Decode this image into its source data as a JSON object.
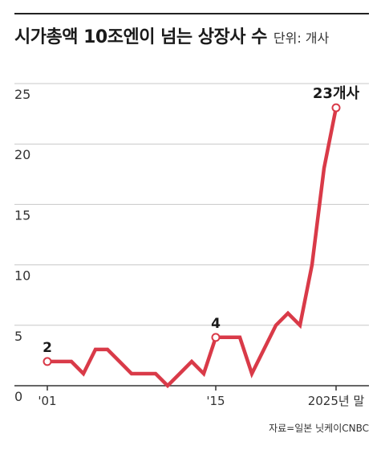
{
  "title": "시가총액 10조엔이 넘는 상장사 수",
  "unit": "단위: 개사",
  "source": "자료=일본 닛케이CNBC",
  "colors": {
    "line": "#d93a48",
    "grid": "#c8c8c8",
    "axis": "#333333",
    "text": "#1a1a1a"
  },
  "chart_data": {
    "type": "line",
    "x": [
      2001,
      2002,
      2003,
      2004,
      2005,
      2006,
      2007,
      2008,
      2009,
      2010,
      2011,
      2012,
      2013,
      2014,
      2015,
      2016,
      2017,
      2018,
      2019,
      2020,
      2021,
      2022,
      2023,
      2024,
      2025
    ],
    "series": [
      {
        "name": "",
        "values": [
          2,
          2,
          2,
          1,
          3,
          3,
          2,
          1,
          1,
          1,
          0,
          1,
          2,
          1,
          4,
          4,
          4,
          1,
          3,
          5,
          6,
          5,
          10,
          18,
          23
        ]
      }
    ],
    "ylim": [
      0,
      25
    ],
    "yticks": [
      0,
      5,
      10,
      15,
      20,
      25
    ],
    "xtick_labels": [
      {
        "x": 2001,
        "label": "'01"
      },
      {
        "x": 2015,
        "label": "'15"
      },
      {
        "x": 2025,
        "label": "2025년 말"
      }
    ],
    "annotations": [
      {
        "x": 2001,
        "y": 2,
        "label": "2"
      },
      {
        "x": 2015,
        "y": 4,
        "label": "4"
      },
      {
        "x": 2025,
        "y": 23,
        "label": "23개사"
      }
    ],
    "grid": true
  }
}
